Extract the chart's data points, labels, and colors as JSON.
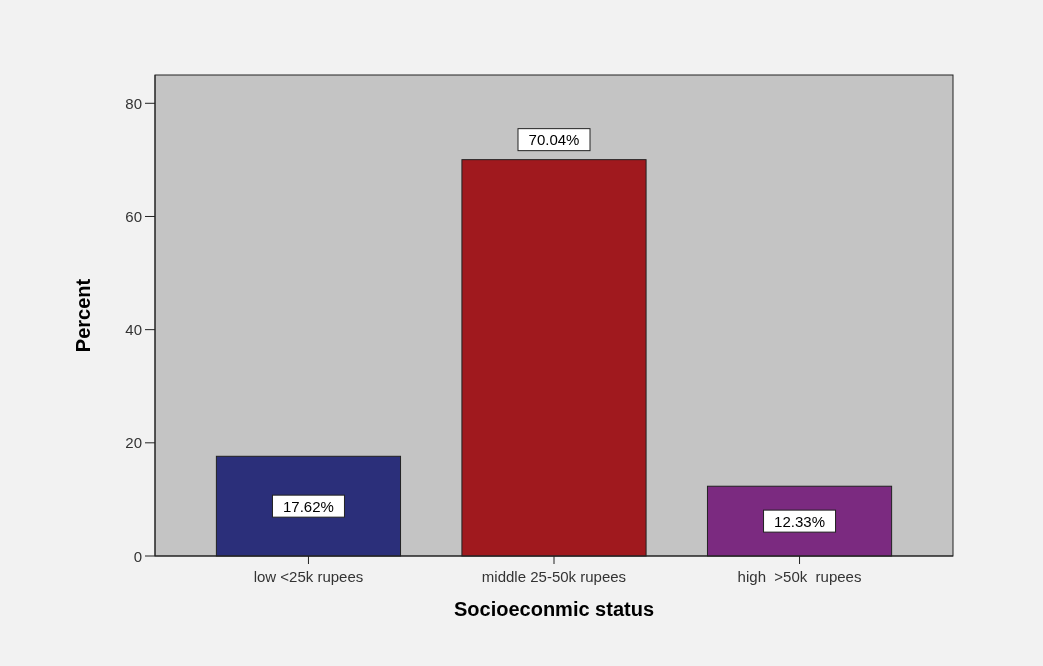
{
  "chart_data": {
    "type": "bar",
    "xlabel": "Socioeconmic status",
    "ylabel": "Percent",
    "categories": [
      "low <25k rupees",
      "middle 25-50k rupees",
      "high  >50k  rupees"
    ],
    "values": [
      17.62,
      70.04,
      12.33
    ],
    "colors": [
      "#2b2f7a",
      "#a0191e",
      "#7b2a80"
    ],
    "value_labels": [
      "17.62%",
      "70.04%",
      "12.33%"
    ],
    "ylim": [
      0,
      85
    ],
    "yticks": [
      0,
      20,
      40,
      60,
      80
    ]
  }
}
